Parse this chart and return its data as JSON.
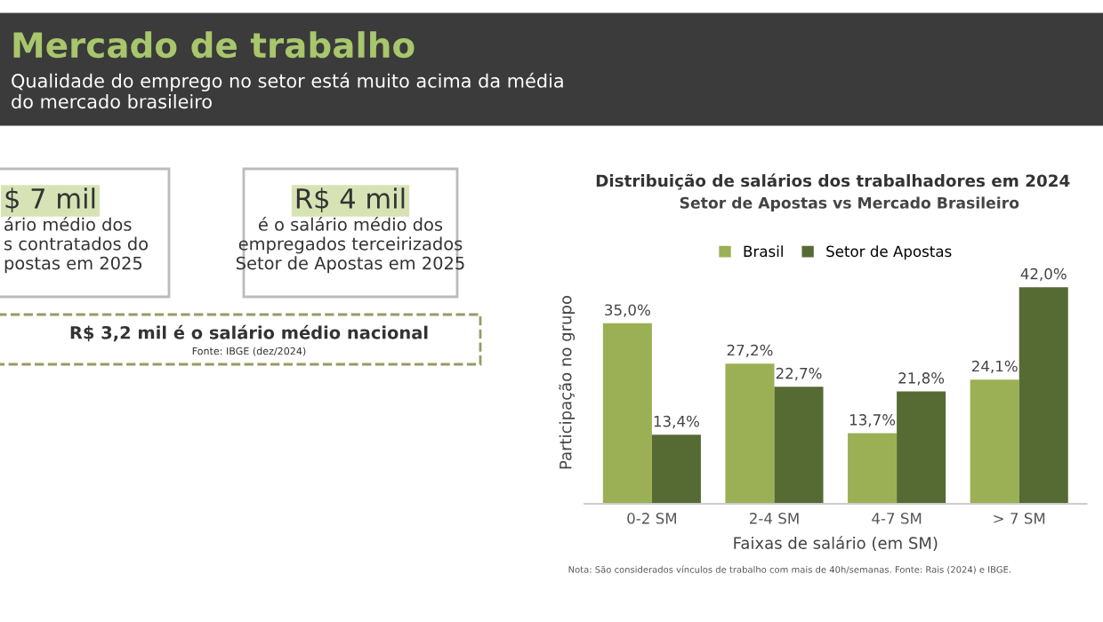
{
  "chart_data": [
    {
      "type": "other",
      "title": "Mercado de trabalho",
      "subtitle": "Qualidade do emprego no setor está muito acima da média\ndo mercado brasileiro",
      "annotations": [
        "$ 7 mil",
        "ário médio dos\ns contratados do\npostas em 2025",
        "R$ 4 mil",
        "é o salário médio dos\nempregados terceirizados\nSetor de Apostas em 2025",
        "R$ 3,2 mil é o salário médio nacional",
        "Fonte: IBGE (dez/2024)"
      ]
    },
    {
      "type": "bar",
      "title": "Distribuição de salários dos trabalhadores em 2024",
      "subtitle": "Setor de Apostas vs Mercado Brasileiro",
      "xlabel": "Faixas de salário (em SM)",
      "ylabel": "Participação no grupo",
      "categories": [
        "0-2 SM",
        "2-4 SM",
        "4-7 SM",
        "> 7 SM"
      ],
      "series": [
        {
          "name": "Brasil",
          "color": "#9bb054",
          "values": [
            35.0,
            27.2,
            13.7,
            24.1
          ],
          "value_labels": [
            "35,0%",
            "27,2%",
            "13,7%",
            "24,1%"
          ]
        },
        {
          "name": "Setor de Apostas",
          "color": "#566b34",
          "values": [
            13.4,
            22.7,
            21.8,
            42.0
          ],
          "value_labels": [
            "13,4%",
            "22,7%",
            "21,8%",
            "42,0%"
          ]
        }
      ],
      "legend": "top",
      "grid": false,
      "annotations": [
        "Nota: São considerados vínculos de trabalho com mais de 40h/semanas. Fonte: Rais (2024) e IBGE."
      ]
    }
  ]
}
